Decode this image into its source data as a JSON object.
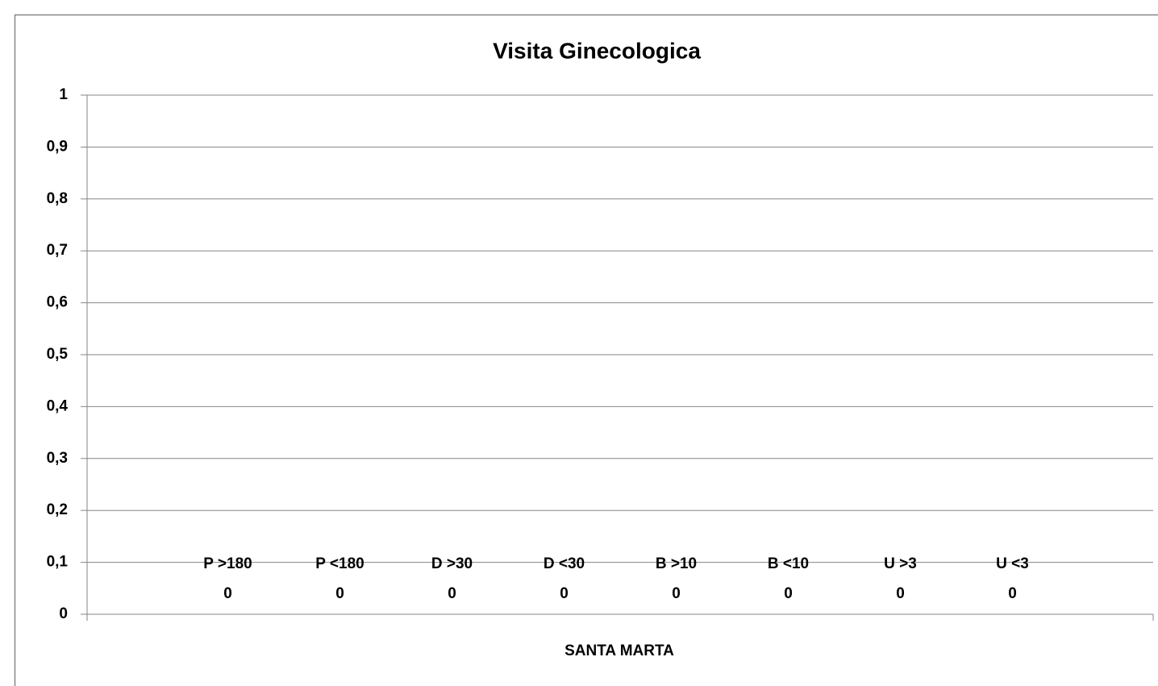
{
  "chart_data": {
    "type": "bar",
    "title": "Visita Ginecologica",
    "x_label": "SANTA MARTA",
    "categories": [
      "SANTA MARTA"
    ],
    "series": [
      {
        "name": "P >180",
        "color": "#4f81bd",
        "values": [
          0
        ]
      },
      {
        "name": "P <180",
        "color": "#c0504d",
        "values": [
          0
        ]
      },
      {
        "name": "D >30",
        "color": "#9bbb59",
        "values": [
          0
        ]
      },
      {
        "name": "D <30",
        "color": "#8064a2",
        "values": [
          0
        ]
      },
      {
        "name": "B >10",
        "color": "#4bacc6",
        "values": [
          0
        ]
      },
      {
        "name": "B <10",
        "color": "#f79646",
        "values": [
          0
        ]
      },
      {
        "name": "U >3",
        "color": "#2c4d75",
        "values": [
          0
        ]
      },
      {
        "name": "U <3",
        "color": "#772c2a",
        "values": [
          0
        ]
      }
    ],
    "ylim": [
      0,
      1
    ],
    "yticks": [
      0,
      {
        "value": 0.1,
        "label": "0,1"
      },
      {
        "value": 0.2,
        "label": "0,2"
      },
      {
        "value": 0.3,
        "label": "0,3"
      },
      {
        "value": 0.4,
        "label": "0,4"
      },
      {
        "value": 0.5,
        "label": "0,5"
      },
      {
        "value": 0.6,
        "label": "0,6"
      },
      {
        "value": 0.7,
        "label": "0,7"
      },
      {
        "value": 0.8,
        "label": "0,8"
      },
      {
        "value": 0.9,
        "label": "0,9"
      },
      1
    ],
    "grid": true
  }
}
